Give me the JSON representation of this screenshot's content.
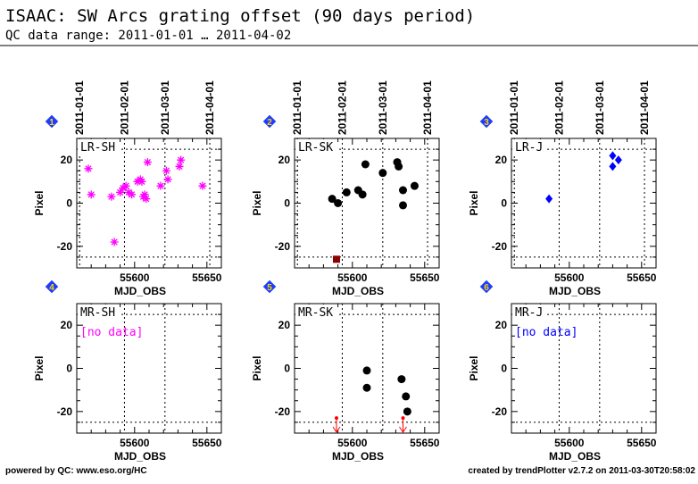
{
  "header": {
    "title": "ISAAC: SW Arcs grating offset (90 days period)",
    "subtitle": "QC data range: 2011-01-01 … 2011-04-02"
  },
  "footer": {
    "left": "powered by QC: www.eso.org/HC",
    "right": "created by trendPlotter v2.7.2 on 2011-03-30T20:58:02"
  },
  "chart_data": [
    {
      "type": "scatter",
      "badge": "1",
      "label": "LR-SH",
      "color": "#ff00ff",
      "marker": "asterisk",
      "xlabel": "MJD_OBS",
      "ylabel": "Pixel",
      "xlim": [
        55560,
        55660
      ],
      "ylim": [
        -30,
        30
      ],
      "x_ticks": [
        55600,
        55650
      ],
      "y_ticks": [
        -20,
        0,
        20
      ],
      "top_ticks": [
        "2011-01-01",
        "2011-02-01",
        "2011-03-01",
        "2011-04-01"
      ],
      "top_tick_mjd": [
        55562,
        55593,
        55621,
        55652
      ],
      "ref_lines_y": [
        -25,
        25
      ],
      "nodata": "",
      "points": [
        {
          "x": 55568,
          "y": 16
        },
        {
          "x": 55570,
          "y": 4
        },
        {
          "x": 55584,
          "y": 3
        },
        {
          "x": 55586,
          "y": -18
        },
        {
          "x": 55590,
          "y": 5
        },
        {
          "x": 55592,
          "y": 7
        },
        {
          "x": 55594,
          "y": 8
        },
        {
          "x": 55596,
          "y": 5
        },
        {
          "x": 55598,
          "y": 4
        },
        {
          "x": 55602,
          "y": 10
        },
        {
          "x": 55604,
          "y": 11
        },
        {
          "x": 55605,
          "y": 10
        },
        {
          "x": 55606,
          "y": 3
        },
        {
          "x": 55607,
          "y": 4
        },
        {
          "x": 55608,
          "y": 2
        },
        {
          "x": 55609,
          "y": 19
        },
        {
          "x": 55618,
          "y": 8
        },
        {
          "x": 55622,
          "y": 15
        },
        {
          "x": 55623,
          "y": 11
        },
        {
          "x": 55631,
          "y": 17
        },
        {
          "x": 55632,
          "y": 20
        },
        {
          "x": 55647,
          "y": 8
        }
      ],
      "outliers": []
    },
    {
      "type": "scatter",
      "badge": "2",
      "label": "LR-SK",
      "color": "#000000",
      "marker": "dot",
      "xlabel": "MJD_OBS",
      "ylabel": "Pixel",
      "xlim": [
        55560,
        55660
      ],
      "ylim": [
        -30,
        30
      ],
      "x_ticks": [
        55600,
        55650
      ],
      "y_ticks": [
        -20,
        0,
        20
      ],
      "top_ticks": [
        "2011-01-01",
        "2011-02-01",
        "2011-03-01",
        "2011-04-01"
      ],
      "top_tick_mjd": [
        55562,
        55593,
        55621,
        55652
      ],
      "ref_lines_y": [
        -25,
        25
      ],
      "nodata": "",
      "points": [
        {
          "x": 55586,
          "y": 2
        },
        {
          "x": 55590,
          "y": 0
        },
        {
          "x": 55596,
          "y": 5
        },
        {
          "x": 55604,
          "y": 6
        },
        {
          "x": 55607,
          "y": 4
        },
        {
          "x": 55609,
          "y": 18
        },
        {
          "x": 55621,
          "y": 14
        },
        {
          "x": 55631,
          "y": 19
        },
        {
          "x": 55632,
          "y": 17
        },
        {
          "x": 55635,
          "y": 6
        },
        {
          "x": 55635,
          "y": -1
        },
        {
          "x": 55643,
          "y": 8
        }
      ],
      "outliers": [
        {
          "x": 55589,
          "y": -26,
          "color": "#8b0000",
          "kind": "square"
        }
      ]
    },
    {
      "type": "scatter",
      "badge": "3",
      "label": "LR-J",
      "color": "#0000ff",
      "marker": "diamond",
      "xlabel": "MJD_OBS",
      "ylabel": "Pixel",
      "xlim": [
        55560,
        55660
      ],
      "ylim": [
        -30,
        30
      ],
      "x_ticks": [
        55600,
        55650
      ],
      "y_ticks": [
        -20,
        0,
        20
      ],
      "top_ticks": [
        "2011-01-01",
        "2011-02-01",
        "2011-03-01",
        "2011-04-01"
      ],
      "top_tick_mjd": [
        55562,
        55593,
        55621,
        55652
      ],
      "ref_lines_y": [
        -25,
        25
      ],
      "nodata": "",
      "points": [
        {
          "x": 55586,
          "y": 2
        },
        {
          "x": 55630,
          "y": 22
        },
        {
          "x": 55630,
          "y": 17
        },
        {
          "x": 55634,
          "y": 20
        }
      ],
      "outliers": []
    },
    {
      "type": "scatter",
      "badge": "4",
      "label": "MR-SH",
      "color": "#ff00ff",
      "marker": "asterisk",
      "xlabel": "MJD_OBS",
      "ylabel": "Pixel",
      "xlim": [
        55560,
        55660
      ],
      "ylim": [
        -30,
        30
      ],
      "x_ticks": [
        55600,
        55650
      ],
      "y_ticks": [
        -20,
        0,
        20
      ],
      "top_ticks": [],
      "top_tick_mjd": [
        55593,
        55621
      ],
      "ref_lines_y": [
        -25,
        25
      ],
      "nodata": "[no data]",
      "points": [],
      "outliers": []
    },
    {
      "type": "scatter",
      "badge": "5",
      "label": "MR-SK",
      "color": "#000000",
      "marker": "dot",
      "xlabel": "MJD_OBS",
      "ylabel": "Pixel",
      "xlim": [
        55560,
        55660
      ],
      "ylim": [
        -30,
        30
      ],
      "x_ticks": [
        55600,
        55650
      ],
      "y_ticks": [
        -20,
        0,
        20
      ],
      "top_ticks": [],
      "top_tick_mjd": [
        55593,
        55621
      ],
      "ref_lines_y": [
        -25,
        25
      ],
      "nodata": "",
      "points": [
        {
          "x": 55610,
          "y": -1
        },
        {
          "x": 55610,
          "y": -9
        },
        {
          "x": 55634,
          "y": -5
        },
        {
          "x": 55637,
          "y": -13
        },
        {
          "x": 55638,
          "y": -20
        }
      ],
      "outliers": [
        {
          "x": 55589,
          "y": -23,
          "color": "#ff0000",
          "kind": "arrow"
        },
        {
          "x": 55635,
          "y": -23,
          "color": "#ff0000",
          "kind": "arrow"
        }
      ]
    },
    {
      "type": "scatter",
      "badge": "6",
      "label": "MR-J",
      "color": "#0000ff",
      "marker": "diamond",
      "xlabel": "MJD_OBS",
      "ylabel": "Pixel",
      "xlim": [
        55560,
        55660
      ],
      "ylim": [
        -30,
        30
      ],
      "x_ticks": [
        55600,
        55650
      ],
      "y_ticks": [
        -20,
        0,
        20
      ],
      "top_ticks": [],
      "top_tick_mjd": [
        55593,
        55621
      ],
      "ref_lines_y": [
        -25,
        25
      ],
      "nodata": "[no data]",
      "points": [],
      "outliers": []
    }
  ]
}
